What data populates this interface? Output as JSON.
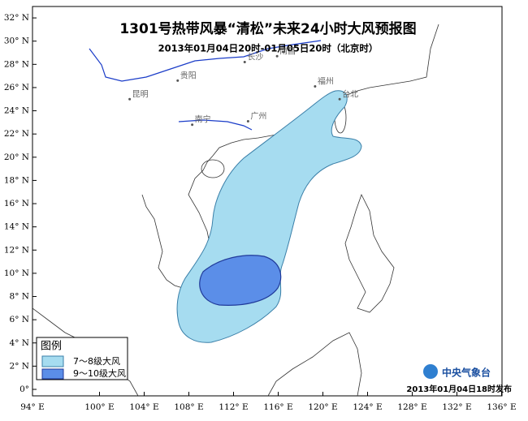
{
  "header": {
    "title": "1301号热带风暴“清松”未来24小时大风预报图",
    "subtitle": "2013年01月04日20时-01月05日20时（北京时）"
  },
  "map": {
    "lat_ticks": [
      {
        "value": 32,
        "label": "32° N"
      },
      {
        "value": 30,
        "label": "30° N"
      },
      {
        "value": 28,
        "label": "28° N"
      },
      {
        "value": 26,
        "label": "26° N"
      },
      {
        "value": 24,
        "label": "24° N"
      },
      {
        "value": 22,
        "label": "22° N"
      },
      {
        "value": 20,
        "label": "20° N"
      },
      {
        "value": 18,
        "label": "18° N"
      },
      {
        "value": 16,
        "label": "16° N"
      },
      {
        "value": 14,
        "label": "14° N"
      },
      {
        "value": 12,
        "label": "12° N"
      },
      {
        "value": 10,
        "label": "10° N"
      },
      {
        "value": 8,
        "label": "8° N"
      },
      {
        "value": 6,
        "label": "6° N"
      },
      {
        "value": 4,
        "label": "4° N"
      },
      {
        "value": 2,
        "label": "2° N"
      },
      {
        "value": 0,
        "label": "0°"
      }
    ],
    "lon_ticks": [
      {
        "value": 94,
        "label": "94° E"
      },
      {
        "value": 100,
        "label": "100° E"
      },
      {
        "value": 104,
        "label": "104° E"
      },
      {
        "value": 108,
        "label": "108° E"
      },
      {
        "value": 112,
        "label": "112° E"
      },
      {
        "value": 116,
        "label": "116° E"
      },
      {
        "value": 120,
        "label": "120° E"
      },
      {
        "value": 124,
        "label": "124° E"
      },
      {
        "value": 128,
        "label": "128° E"
      },
      {
        "value": 132,
        "label": "132° E"
      },
      {
        "value": 136,
        "label": "136° E"
      }
    ],
    "cities": [
      {
        "name": "贵阳",
        "lon": 107,
        "lat": 26.6
      },
      {
        "name": "长沙",
        "lon": 113,
        "lat": 28.2
      },
      {
        "name": "南昌",
        "lon": 115.9,
        "lat": 28.7
      },
      {
        "name": "福州",
        "lon": 119.3,
        "lat": 26.1
      },
      {
        "name": "昆明",
        "lon": 102.7,
        "lat": 25
      },
      {
        "name": "南宁",
        "lon": 108.3,
        "lat": 22.8
      },
      {
        "name": "广州",
        "lon": 113.3,
        "lat": 23.1
      },
      {
        "name": "台北",
        "lon": 121.5,
        "lat": 25
      }
    ]
  },
  "legend": {
    "title": "图例",
    "items": [
      "7～8级大风",
      "9～10级大风"
    ]
  },
  "footer": {
    "org": "中央气象台",
    "issued": "2013年01月04日18时发布"
  }
}
